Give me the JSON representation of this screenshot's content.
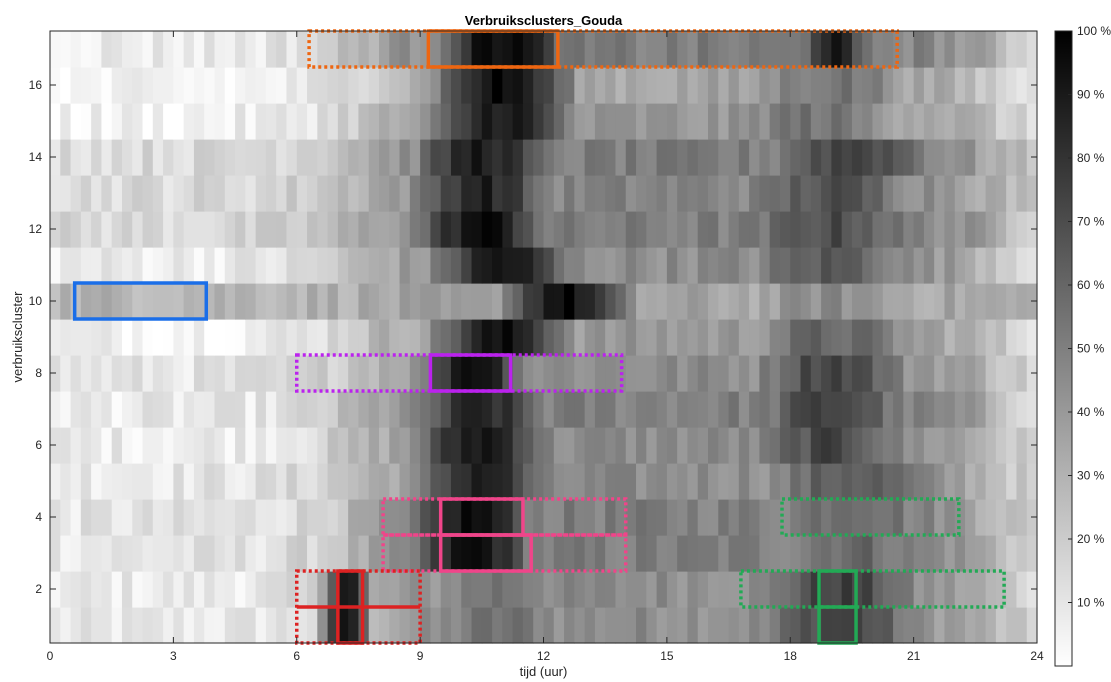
{
  "chart_data": {
    "type": "heatmap",
    "title": "Verbruiksclusters_Gouda",
    "xlabel": "tijd (uur)",
    "ylabel": "verbruikscluster",
    "xlim": [
      0,
      24
    ],
    "ylim": [
      0.5,
      17.5
    ],
    "x_ticks": [
      0,
      3,
      6,
      9,
      12,
      15,
      18,
      21,
      24
    ],
    "y_ticks": [
      2,
      4,
      6,
      8,
      10,
      12,
      14,
      16
    ],
    "x_bins_per_hour": 4,
    "rows": 17,
    "grid": false,
    "colormap": "gray (white = 0 %, black = 100 %)",
    "colorbar": {
      "min": 0,
      "max": 100,
      "ticks": [
        10,
        20,
        30,
        40,
        50,
        60,
        70,
        80,
        90,
        100
      ],
      "tick_labels": [
        "10 %",
        "20 %",
        "30 %",
        "40 %",
        "50 %",
        "60 %",
        "70 %",
        "80 %",
        "90 %",
        "100 %"
      ]
    },
    "row_profiles": [
      {
        "cluster": 1,
        "night": 8,
        "peaks": [
          [
            7.2,
            0.6,
            95
          ],
          [
            11.0,
            3.0,
            55
          ],
          [
            19.2,
            2.5,
            75
          ]
        ],
        "base": 45
      },
      {
        "cluster": 2,
        "night": 8,
        "peaks": [
          [
            7.2,
            0.6,
            95
          ],
          [
            11.0,
            3.0,
            55
          ],
          [
            19.2,
            2.5,
            75
          ]
        ],
        "base": 45
      },
      {
        "cluster": 3,
        "night": 10,
        "peaks": [
          [
            10.3,
            1.8,
            95
          ],
          [
            19.5,
            3.0,
            60
          ]
        ],
        "base": 50
      },
      {
        "cluster": 4,
        "night": 10,
        "peaks": [
          [
            10.3,
            1.8,
            95
          ],
          [
            19.5,
            3.0,
            62
          ]
        ],
        "base": 50
      },
      {
        "cluster": 5,
        "night": 10,
        "peaks": [
          [
            10.5,
            1.8,
            90
          ],
          [
            19.5,
            3.0,
            65
          ]
        ],
        "base": 45
      },
      {
        "cluster": 6,
        "night": 8,
        "peaks": [
          [
            10.5,
            2.0,
            92
          ],
          [
            19.0,
            2.5,
            72
          ]
        ],
        "base": 45
      },
      {
        "cluster": 7,
        "night": 8,
        "peaks": [
          [
            10.5,
            2.0,
            85
          ],
          [
            19.0,
            2.5,
            75
          ]
        ],
        "base": 50
      },
      {
        "cluster": 8,
        "night": 10,
        "peaks": [
          [
            10.3,
            1.5,
            98
          ],
          [
            19.0,
            2.5,
            75
          ]
        ],
        "base": 45
      },
      {
        "cluster": 9,
        "night": 6,
        "peaks": [
          [
            11.0,
            2.0,
            92
          ],
          [
            19.0,
            3.0,
            60
          ]
        ],
        "base": 40
      },
      {
        "cluster": 10,
        "night": 30,
        "peaks": [
          [
            12.5,
            1.8,
            95
          ],
          [
            19.0,
            3.0,
            45
          ]
        ],
        "base": 35
      },
      {
        "cluster": 11,
        "night": 8,
        "peaks": [
          [
            11.0,
            2.0,
            92
          ],
          [
            19.0,
            3.0,
            65
          ]
        ],
        "base": 45
      },
      {
        "cluster": 12,
        "night": 15,
        "peaks": [
          [
            10.5,
            2.0,
            95
          ],
          [
            19.0,
            3.0,
            70
          ]
        ],
        "base": 50
      },
      {
        "cluster": 13,
        "night": 15,
        "peaks": [
          [
            10.5,
            2.0,
            88
          ],
          [
            19.0,
            3.0,
            68
          ]
        ],
        "base": 48
      },
      {
        "cluster": 14,
        "night": 15,
        "peaks": [
          [
            10.5,
            2.0,
            90
          ],
          [
            19.5,
            3.0,
            75
          ]
        ],
        "base": 50
      },
      {
        "cluster": 15,
        "night": 5,
        "peaks": [
          [
            11.0,
            2.0,
            92
          ],
          [
            18.5,
            3.0,
            55
          ]
        ],
        "base": 40
      },
      {
        "cluster": 16,
        "night": 3,
        "peaks": [
          [
            11.0,
            2.0,
            95
          ],
          [
            19.0,
            3.0,
            55
          ]
        ],
        "base": 35
      },
      {
        "cluster": 17,
        "night": 8,
        "peaks": [
          [
            11.0,
            2.0,
            98
          ],
          [
            19.0,
            1.0,
            90
          ]
        ],
        "base": 50
      }
    ],
    "annotations": [
      {
        "color": "#ee6611",
        "style": "dotted",
        "x": [
          6.3,
          20.6
        ],
        "y": [
          16.5,
          17.5
        ]
      },
      {
        "color": "#ee6611",
        "style": "solid",
        "x": [
          9.2,
          12.35
        ],
        "y": [
          16.5,
          17.5
        ]
      },
      {
        "color": "#1a6ee8",
        "style": "solid",
        "x": [
          0.6,
          3.8
        ],
        "y": [
          9.5,
          10.5
        ]
      },
      {
        "color": "#bb22ee",
        "style": "dotted",
        "x": [
          6.0,
          13.9
        ],
        "y": [
          7.5,
          8.5
        ]
      },
      {
        "color": "#bb22ee",
        "style": "solid",
        "x": [
          9.25,
          11.2
        ],
        "y": [
          7.5,
          8.5
        ]
      },
      {
        "color": "#f0458a",
        "style": "dotted",
        "x": [
          8.1,
          14.0
        ],
        "y": [
          3.5,
          4.5
        ]
      },
      {
        "color": "#f0458a",
        "style": "solid",
        "x": [
          9.5,
          11.5
        ],
        "y": [
          3.5,
          4.5
        ]
      },
      {
        "color": "#f0458a",
        "style": "dotted",
        "x": [
          8.1,
          14.0
        ],
        "y": [
          2.5,
          3.5
        ]
      },
      {
        "color": "#f0458a",
        "style": "solid",
        "x": [
          9.5,
          11.7
        ],
        "y": [
          2.5,
          3.5
        ]
      },
      {
        "color": "#22aa55",
        "style": "dotted",
        "x": [
          17.8,
          22.1
        ],
        "y": [
          3.5,
          4.5
        ]
      },
      {
        "color": "#22aa55",
        "style": "dotted",
        "x": [
          16.8,
          23.2
        ],
        "y": [
          1.5,
          2.5
        ]
      },
      {
        "color": "#22aa55",
        "style": "solid",
        "x": [
          18.7,
          19.6
        ],
        "y": [
          0.5,
          2.5
        ]
      },
      {
        "color": "#22aa55",
        "style": "solid",
        "x": [
          18.7,
          19.6
        ],
        "y": [
          1.5,
          1.5
        ]
      },
      {
        "color": "#dd2222",
        "style": "dotted",
        "x": [
          6.0,
          9.0
        ],
        "y": [
          0.5,
          2.5
        ]
      },
      {
        "color": "#dd2222",
        "style": "solid",
        "x": [
          7.0,
          7.6
        ],
        "y": [
          0.5,
          2.5
        ]
      },
      {
        "color": "#dd2222",
        "style": "solid",
        "x": [
          6.0,
          9.0
        ],
        "y": [
          1.5,
          1.5
        ]
      }
    ]
  }
}
